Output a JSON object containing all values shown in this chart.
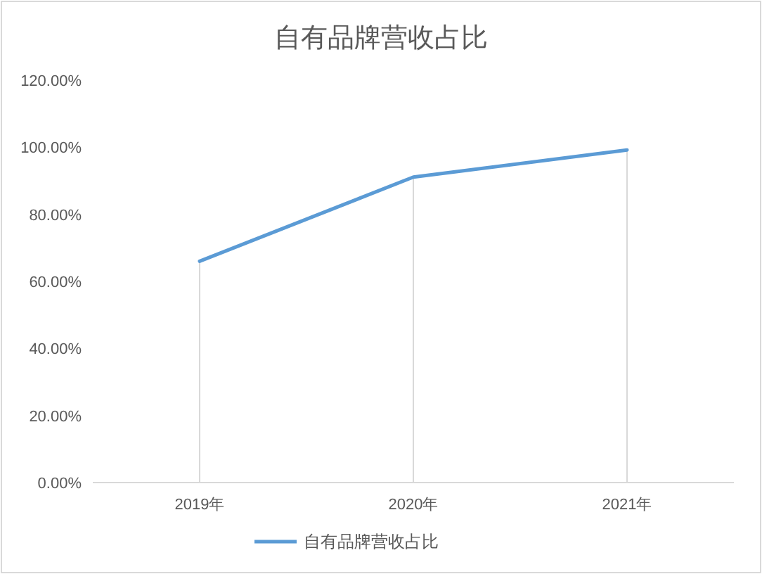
{
  "chart_data": {
    "type": "line",
    "title": "自有品牌营收占比",
    "categories": [
      "2019年",
      "2020年",
      "2021年"
    ],
    "series": [
      {
        "name": "自有品牌营收占比",
        "color": "#5b9bd5",
        "values": [
          66.0,
          91.1,
          99.2
        ]
      },
      {
        "type": "bar",
        "color": "#d9d9d9",
        "values": [
          66.0,
          91.1,
          99.2
        ]
      }
    ],
    "ylim": [
      0,
      120
    ],
    "yticks": [
      {
        "value": 0,
        "label": "0.00%"
      },
      {
        "value": 20,
        "label": "20.00%"
      },
      {
        "value": 40,
        "label": "40.00%"
      },
      {
        "value": 60,
        "label": "60.00%"
      },
      {
        "value": 80,
        "label": "80.00%"
      },
      {
        "value": 100,
        "label": "100.00%"
      },
      {
        "value": 120,
        "label": "120.00%"
      }
    ],
    "grid": false,
    "legend": "bottom",
    "marker": "none",
    "line_style": "solid"
  }
}
